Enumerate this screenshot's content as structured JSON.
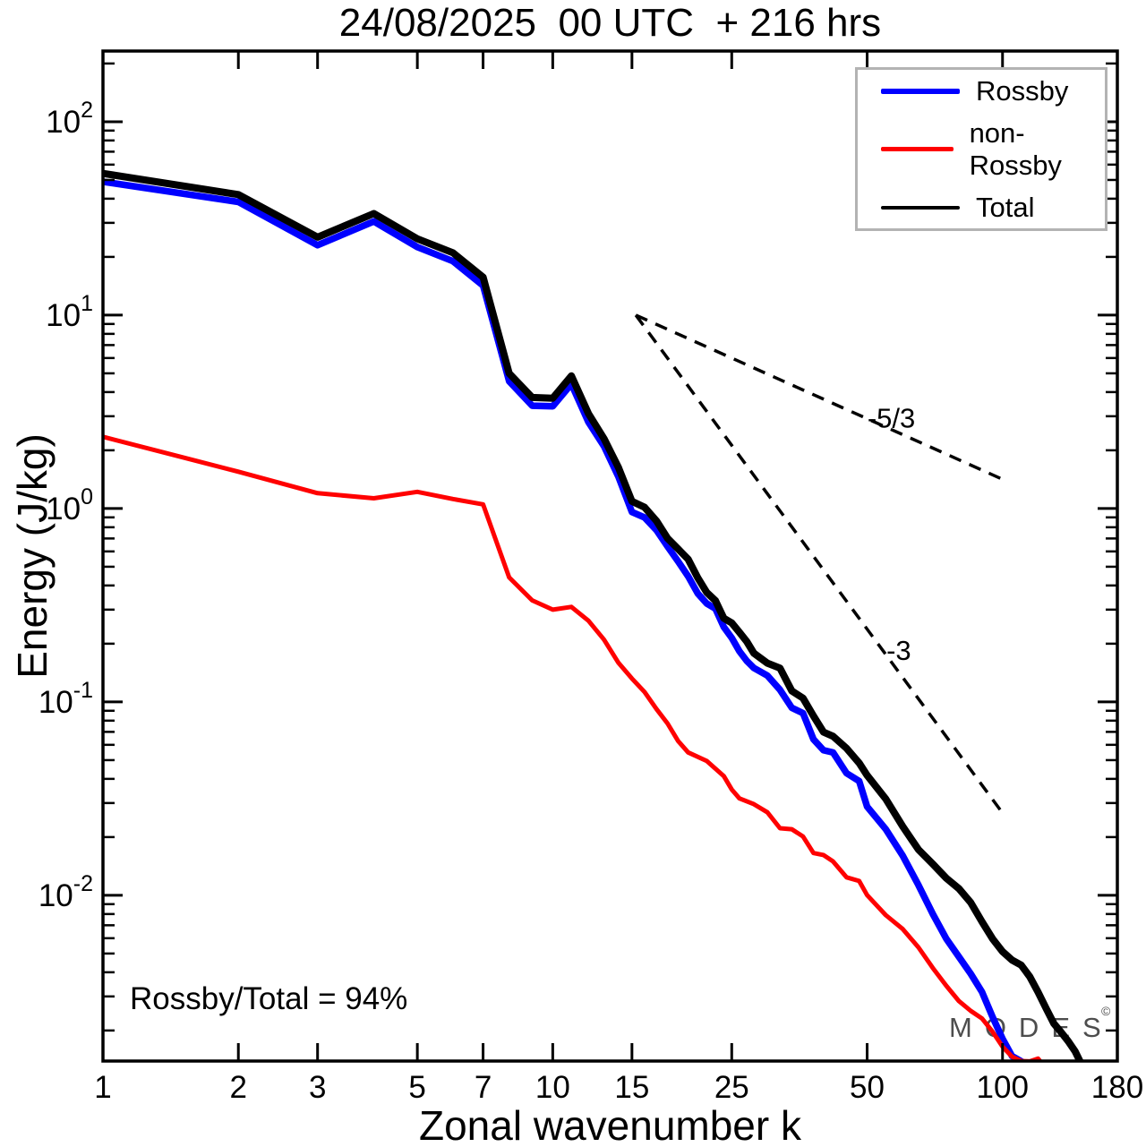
{
  "chart_data": {
    "type": "line",
    "title": "24/08/2025  00 UTC  + 216 hrs",
    "xlabel": "Zonal wavenumber k",
    "ylabel": "Energy (J/kg)",
    "annotation": "Rossby/Total = 94%",
    "watermark": {
      "text": "MODES",
      "symbol": "©",
      "color": "#4d4d4d"
    },
    "x_scale": "log",
    "y_scale": "log",
    "xlim": [
      1,
      180
    ],
    "ylim": [
      0.00139,
      232
    ],
    "x_ticks": [
      1,
      2,
      3,
      5,
      7,
      10,
      15,
      25,
      50,
      100,
      180
    ],
    "y_tick_exponents": [
      2,
      1,
      0,
      -1,
      -2
    ],
    "legend_position": "top-right",
    "legend_line_thickness": [
      6,
      5,
      4
    ],
    "frame_color": "#000000",
    "series": [
      {
        "name": "Rossby",
        "color": "#0000ff",
        "width": 7.5,
        "points": [
          [
            1,
            49
          ],
          [
            2,
            38.5
          ],
          [
            3,
            23
          ],
          [
            4,
            30.5
          ],
          [
            5,
            22.5
          ],
          [
            6,
            19
          ],
          [
            7,
            14.2
          ],
          [
            8,
            4.55
          ],
          [
            9,
            3.4
          ],
          [
            10,
            3.38
          ],
          [
            11,
            4.4
          ],
          [
            12,
            2.8
          ],
          [
            13,
            2.1
          ],
          [
            14,
            1.46
          ],
          [
            15,
            0.97
          ],
          [
            16,
            0.91
          ],
          [
            17,
            0.77
          ],
          [
            18,
            0.62
          ],
          [
            19,
            0.52
          ],
          [
            20,
            0.45
          ],
          [
            21,
            0.38
          ],
          [
            22,
            0.335
          ],
          [
            23,
            0.3
          ],
          [
            24,
            0.232
          ],
          [
            25,
            0.206
          ],
          [
            26,
            0.185
          ],
          [
            27,
            0.172
          ],
          [
            28,
            0.156
          ],
          [
            30,
            0.13
          ],
          [
            32,
            0.117
          ],
          [
            34,
            0.097
          ],
          [
            36,
            0.083
          ],
          [
            38,
            0.065
          ],
          [
            40,
            0.0585
          ],
          [
            42,
            0.052
          ],
          [
            45,
            0.0452
          ],
          [
            48,
            0.037
          ],
          [
            50,
            0.0292
          ],
          [
            55,
            0.0212
          ],
          [
            60,
            0.0152
          ],
          [
            65,
            0.0111
          ],
          [
            70,
            0.0083
          ],
          [
            75,
            0.0063
          ],
          [
            80,
            0.0049
          ],
          [
            85,
            0.0038
          ],
          [
            90,
            0.003
          ],
          [
            95,
            0.0023
          ],
          [
            100,
            0.00187
          ],
          [
            105,
            0.00156
          ],
          [
            110,
            0.00142
          ],
          [
            113,
            0.00131
          ]
        ]
      },
      {
        "name": "non-Rossby",
        "color": "#ff0000",
        "width": 5,
        "points": [
          [
            1,
            2.35
          ],
          [
            2,
            1.55
          ],
          [
            3,
            1.2
          ],
          [
            4,
            1.13
          ],
          [
            5,
            1.22
          ],
          [
            6,
            1.12
          ],
          [
            7,
            1.05
          ],
          [
            8,
            0.44
          ],
          [
            9,
            0.335
          ],
          [
            10,
            0.3
          ],
          [
            11,
            0.31
          ],
          [
            12,
            0.263
          ],
          [
            13,
            0.21
          ],
          [
            14,
            0.16
          ],
          [
            15,
            0.133
          ],
          [
            16,
            0.112
          ],
          [
            17,
            0.09
          ],
          [
            18,
            0.076
          ],
          [
            19,
            0.0635
          ],
          [
            20,
            0.057
          ],
          [
            22,
            0.0486
          ],
          [
            24,
            0.04
          ],
          [
            25,
            0.036
          ],
          [
            26,
            0.0335
          ],
          [
            28,
            0.029
          ],
          [
            30,
            0.026
          ],
          [
            32,
            0.0235
          ],
          [
            34,
            0.0215
          ],
          [
            36,
            0.0195
          ],
          [
            38,
            0.0175
          ],
          [
            40,
            0.0158
          ],
          [
            42,
            0.0145
          ],
          [
            45,
            0.0128
          ],
          [
            48,
            0.0115
          ],
          [
            50,
            0.0106
          ],
          [
            55,
            0.0081
          ],
          [
            60,
            0.0065
          ],
          [
            65,
            0.0051
          ],
          [
            70,
            0.0041
          ],
          [
            75,
            0.0035
          ],
          [
            80,
            0.003
          ],
          [
            85,
            0.0026
          ],
          [
            90,
            0.00225
          ],
          [
            95,
            0.00187
          ],
          [
            100,
            0.0016
          ],
          [
            105,
            0.0015
          ],
          [
            110,
            0.00147
          ],
          [
            115,
            0.00143
          ],
          [
            120,
            0.0014
          ],
          [
            123,
            0.00136
          ]
        ]
      },
      {
        "name": "Total",
        "color": "#000000",
        "width": 8,
        "points": [
          [
            1,
            54
          ],
          [
            2,
            42
          ],
          [
            3,
            25.3
          ],
          [
            4,
            33.5
          ],
          [
            5,
            24.8
          ],
          [
            6,
            21
          ],
          [
            7,
            15.7
          ],
          [
            8,
            5.0
          ],
          [
            9,
            3.75
          ],
          [
            10,
            3.72
          ],
          [
            11,
            4.85
          ],
          [
            12,
            3.1
          ],
          [
            13,
            2.3
          ],
          [
            14,
            1.62
          ],
          [
            15,
            1.09
          ],
          [
            16,
            1.03
          ],
          [
            17,
            0.88
          ],
          [
            18,
            0.7
          ],
          [
            19,
            0.6
          ],
          [
            20,
            0.53
          ],
          [
            21,
            0.44
          ],
          [
            22,
            0.385
          ],
          [
            23,
            0.35
          ],
          [
            24,
            0.27
          ],
          [
            25,
            0.244
          ],
          [
            26,
            0.219
          ],
          [
            27,
            0.206
          ],
          [
            28,
            0.188
          ],
          [
            30,
            0.158
          ],
          [
            32,
            0.143
          ],
          [
            34,
            0.12
          ],
          [
            36,
            0.104
          ],
          [
            38,
            0.081
          ],
          [
            40,
            0.0735
          ],
          [
            42,
            0.066
          ],
          [
            45,
            0.058
          ],
          [
            48,
            0.048
          ],
          [
            50,
            0.04
          ],
          [
            55,
            0.03
          ],
          [
            60,
            0.0225
          ],
          [
            65,
            0.018
          ],
          [
            70,
            0.0153
          ],
          [
            75,
            0.0124
          ],
          [
            80,
            0.0104
          ],
          [
            85,
            0.0087
          ],
          [
            90,
            0.0072
          ],
          [
            95,
            0.0062
          ],
          [
            100,
            0.0054
          ],
          [
            105,
            0.0047
          ],
          [
            110,
            0.0042
          ],
          [
            115,
            0.0036
          ],
          [
            120,
            0.0031
          ],
          [
            125,
            0.0027
          ],
          [
            130,
            0.0023
          ],
          [
            135,
            0.002
          ],
          [
            140,
            0.0017
          ],
          [
            145,
            0.00148
          ],
          [
            150,
            0.0013
          ],
          [
            155,
            0.00115
          ]
        ]
      }
    ],
    "ref_lines": [
      {
        "label": "-5/3",
        "from": [
          15.3,
          10
        ],
        "to": [
          102.5,
          1.38
        ],
        "label_at": [
          56.6,
          2.62
        ]
      },
      {
        "label": "-3",
        "from": [
          15.3,
          10
        ],
        "to": [
          99.7,
          0.0269
        ],
        "label_at": [
          58.8,
          0.165
        ]
      }
    ],
    "wiggle": {
      "amplitude": 0.055,
      "freq": 1.05,
      "ramp_start": 13,
      "ramp_len": 10,
      "phases": [
        1.2,
        2.4,
        0
      ]
    }
  }
}
